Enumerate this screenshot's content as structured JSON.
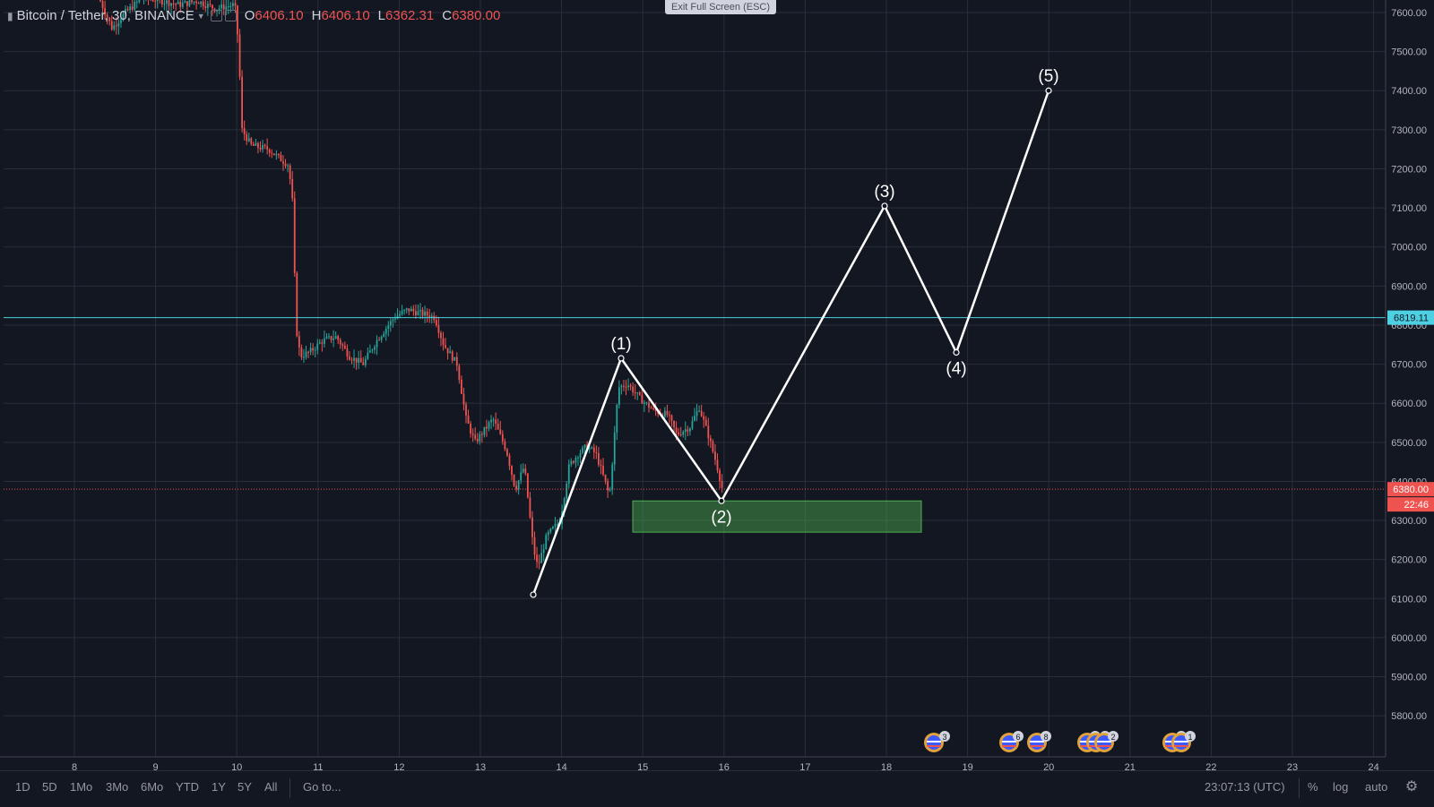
{
  "legend": {
    "symbol": "Bitcoin / Tether, 30, BINANCE",
    "open_label": "O",
    "open_value": "6406.10",
    "high_label": "H",
    "high_value": "6406.10",
    "low_label": "L",
    "low_value": "6362.31",
    "close_label": "C",
    "close_value": "6380.00"
  },
  "exit_fullscreen": "Exit Full Screen (ESC)",
  "price_axis": {
    "ticks": [
      "7600.00",
      "7500.00",
      "7400.00",
      "7300.00",
      "7200.00",
      "7100.00",
      "7000.00",
      "6900.00",
      "6800.00",
      "6700.00",
      "6600.00",
      "6500.00",
      "6400.00",
      "6300.00",
      "6200.00",
      "6100.00",
      "6000.00",
      "5900.00",
      "5800.00"
    ],
    "hline_label": "6819.11",
    "last_price_label": "6380.00",
    "countdown_label": "22:46"
  },
  "time_axis": {
    "ticks": [
      "8",
      "9",
      "10",
      "11",
      "12",
      "13",
      "14",
      "15",
      "16",
      "17",
      "18",
      "19",
      "20",
      "21",
      "22",
      "23",
      "24"
    ]
  },
  "waves": {
    "labels": [
      "(1)",
      "(2)",
      "(3)",
      "(4)",
      "(5)"
    ]
  },
  "events": [
    {
      "count": "3"
    },
    {
      "count": "6"
    },
    {
      "count": "8"
    },
    {
      "count": "5"
    },
    {
      "count": "2"
    },
    {
      "count": "2"
    },
    {
      "count": "33"
    },
    {
      "count": "1"
    }
  ],
  "bottom_bar": {
    "ranges": [
      "1D",
      "5D",
      "1Mo",
      "3Mo",
      "6Mo",
      "YTD",
      "1Y",
      "5Y",
      "All"
    ],
    "goto": "Go to...",
    "clock": "23:07:13 (UTC)",
    "percent": "%",
    "log": "log",
    "auto": "auto"
  },
  "colors": {
    "background": "#131722",
    "up": "#26a69a",
    "down": "#ef5350",
    "grid": "#2a2e39",
    "hline": "#4dd0e1",
    "zone": "#4caf50"
  }
}
